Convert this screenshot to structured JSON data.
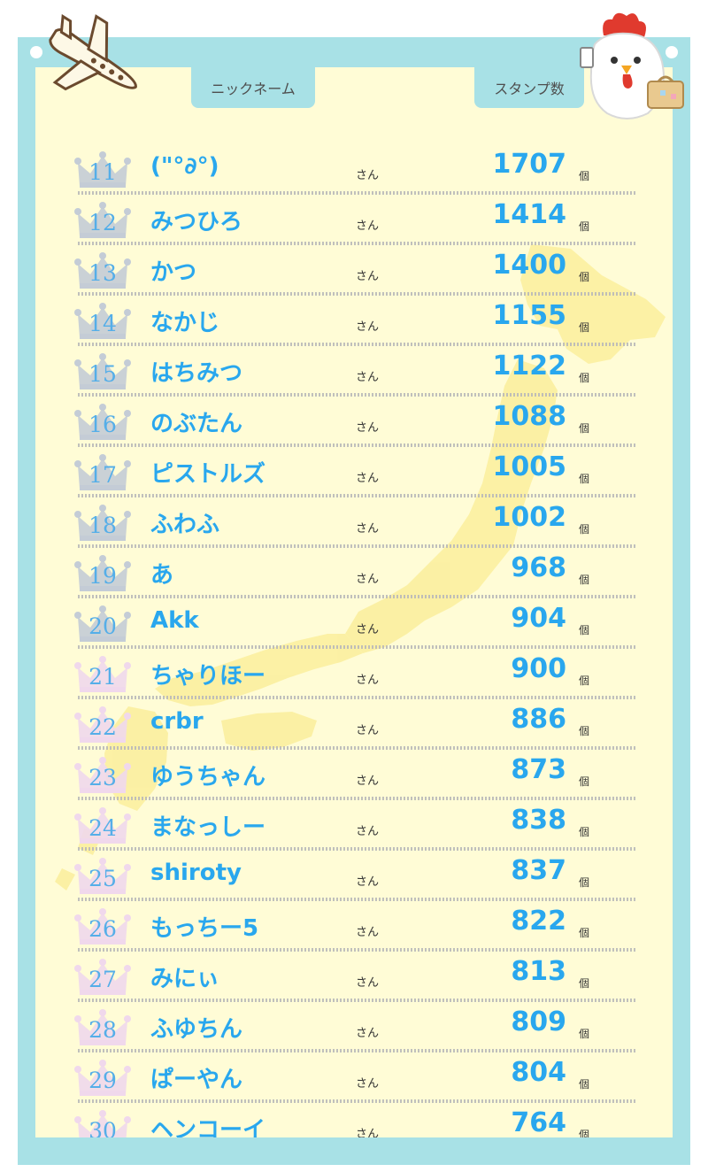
{
  "header": {
    "nickname_label": "ニックネーム",
    "stamp_label": "スタンプ数"
  },
  "colors": {
    "frame": "#a8e1e6",
    "panel": "#fffcd6",
    "map": "#fbef9c",
    "accent_text": "#29a7ee",
    "silver_crown": "#c4ccd6",
    "pink_crown": "#f0d8ec"
  },
  "icons": {
    "plane": "airplane-icon",
    "chicken": "chicken-traveler-icon",
    "crown": "crown-icon",
    "map": "japan-map"
  },
  "ranking": [
    {
      "rank": "11",
      "name": "(\"°∂°)",
      "suffix": "さん",
      "count": "1707",
      "unit": "個",
      "crown": "silver"
    },
    {
      "rank": "12",
      "name": "みつひろ",
      "suffix": "さん",
      "count": "1414",
      "unit": "個",
      "crown": "silver"
    },
    {
      "rank": "13",
      "name": "かつ",
      "suffix": "さん",
      "count": "1400",
      "unit": "個",
      "crown": "silver"
    },
    {
      "rank": "14",
      "name": "なかじ",
      "suffix": "さん",
      "count": "1155",
      "unit": "個",
      "crown": "silver"
    },
    {
      "rank": "15",
      "name": "はちみつ",
      "suffix": "さん",
      "count": "1122",
      "unit": "個",
      "crown": "silver"
    },
    {
      "rank": "16",
      "name": "のぶたん",
      "suffix": "さん",
      "count": "1088",
      "unit": "個",
      "crown": "silver"
    },
    {
      "rank": "17",
      "name": "ピストルズ",
      "suffix": "さん",
      "count": "1005",
      "unit": "個",
      "crown": "silver"
    },
    {
      "rank": "18",
      "name": "ふわふ",
      "suffix": "さん",
      "count": "1002",
      "unit": "個",
      "crown": "silver"
    },
    {
      "rank": "19",
      "name": "あ",
      "suffix": "さん",
      "count": "968",
      "unit": "個",
      "crown": "silver"
    },
    {
      "rank": "20",
      "name": "Akk",
      "suffix": "さん",
      "count": "904",
      "unit": "個",
      "crown": "silver"
    },
    {
      "rank": "21",
      "name": "ちゃりほー",
      "suffix": "さん",
      "count": "900",
      "unit": "個",
      "crown": "pink"
    },
    {
      "rank": "22",
      "name": "crbr",
      "suffix": "さん",
      "count": "886",
      "unit": "個",
      "crown": "pink"
    },
    {
      "rank": "23",
      "name": "ゆうちゃん",
      "suffix": "さん",
      "count": "873",
      "unit": "個",
      "crown": "pink"
    },
    {
      "rank": "24",
      "name": "まなっしー",
      "suffix": "さん",
      "count": "838",
      "unit": "個",
      "crown": "pink"
    },
    {
      "rank": "25",
      "name": "shiroty",
      "suffix": "さん",
      "count": "837",
      "unit": "個",
      "crown": "pink"
    },
    {
      "rank": "26",
      "name": "もっちー5",
      "suffix": "さん",
      "count": "822",
      "unit": "個",
      "crown": "pink"
    },
    {
      "rank": "27",
      "name": "みにぃ",
      "suffix": "さん",
      "count": "813",
      "unit": "個",
      "crown": "pink"
    },
    {
      "rank": "28",
      "name": "ふゆちん",
      "suffix": "さん",
      "count": "809",
      "unit": "個",
      "crown": "pink"
    },
    {
      "rank": "29",
      "name": "ぱーやん",
      "suffix": "さん",
      "count": "804",
      "unit": "個",
      "crown": "pink"
    },
    {
      "rank": "30",
      "name": "ヘンコーイ",
      "suffix": "さん",
      "count": "764",
      "unit": "個",
      "crown": "pink"
    }
  ]
}
